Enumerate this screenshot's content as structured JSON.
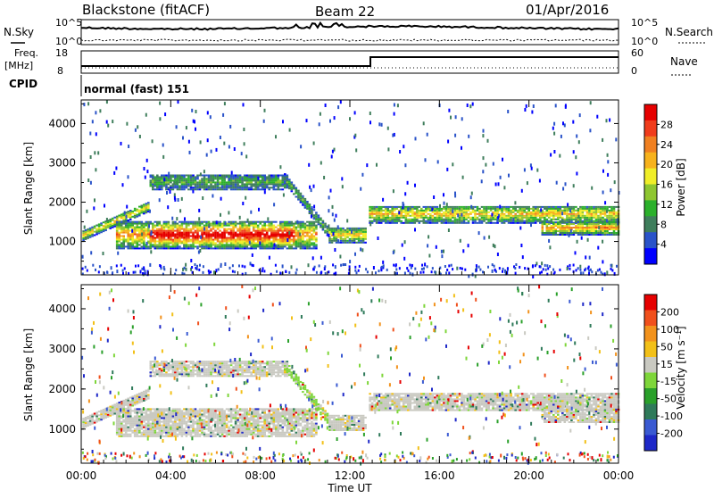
{
  "header": {
    "station": "Blackstone (fitACF)",
    "beam": "Beam 22",
    "date": "01/Apr/2016"
  },
  "top_panel": {
    "left_label": "N.Sky",
    "right_label": "N.Search",
    "left_ticks": [
      "10^5",
      "10^0"
    ],
    "right_ticks": [
      "10^5",
      "10^0"
    ]
  },
  "freq_panel": {
    "left_label_1": "Freq.",
    "left_label_2": "[MHz]",
    "right_label": "Nave",
    "left_ticks": [
      "18",
      "8"
    ],
    "right_ticks": [
      "60",
      "0"
    ]
  },
  "cpid_panel": {
    "label": "CPID",
    "mode_text": "normal (fast) 151"
  },
  "chart_data": [
    {
      "type": "heatmap",
      "name": "power",
      "ylabel": "Slant Range [km]",
      "xlabel": "",
      "y_ticks": [
        1000,
        2000,
        3000,
        4000
      ],
      "ylim": [
        150,
        4600
      ],
      "colorbar": {
        "label": "Power [dB]",
        "ticks": [
          "4",
          "8",
          "12",
          "16",
          "20",
          "24",
          "28"
        ],
        "colors": [
          "#0000ff",
          "#2a53c9",
          "#3f7e5c",
          "#2bb02b",
          "#8ec630",
          "#f0ee28",
          "#f7b21c",
          "#f08021",
          "#f03c1c",
          "#e60000"
        ]
      },
      "regions": [
        {
          "t": [
            0.0,
            3.0
          ],
          "r": [
            1100,
            1250
          ],
          "level": "moderate"
        },
        {
          "t": [
            1.5,
            10.5
          ],
          "r": [
            800,
            1500
          ],
          "level": "strong"
        },
        {
          "t": [
            3.0,
            9.2
          ],
          "r": [
            2300,
            2700
          ],
          "level": "weak"
        },
        {
          "t": [
            9.0,
            11.0
          ],
          "r": [
            1300,
            2500
          ],
          "level": "weak"
        },
        {
          "t": [
            11.0,
            12.7
          ],
          "r": [
            950,
            1350
          ],
          "level": "moderate"
        },
        {
          "t": [
            12.8,
            24.0
          ],
          "r": [
            1450,
            1900
          ],
          "level": "moderate"
        },
        {
          "t": [
            20.5,
            24.0
          ],
          "r": [
            1150,
            1500
          ],
          "level": "strong"
        }
      ]
    },
    {
      "type": "heatmap",
      "name": "velocity",
      "ylabel": "Slant Range [km]",
      "xlabel": "Time UT",
      "x_ticks": [
        "00:00",
        "04:00",
        "08:00",
        "12:00",
        "16:00",
        "20:00",
        "00:00"
      ],
      "y_ticks": [
        1000,
        2000,
        3000,
        4000
      ],
      "ylim": [
        150,
        4600
      ],
      "colorbar": {
        "label": "Velocity [m s⁻¹]",
        "ticks": [
          "200",
          "100",
          "50",
          "15",
          "-15",
          "-50",
          "-100",
          "-200"
        ],
        "colors": [
          "#1e28c8",
          "#3a5ad2",
          "#2f7a5a",
          "#2aa02a",
          "#7ed63a",
          "#c9c9c1",
          "#f2c018",
          "#f2921c",
          "#f0501c",
          "#e60000"
        ]
      }
    }
  ]
}
